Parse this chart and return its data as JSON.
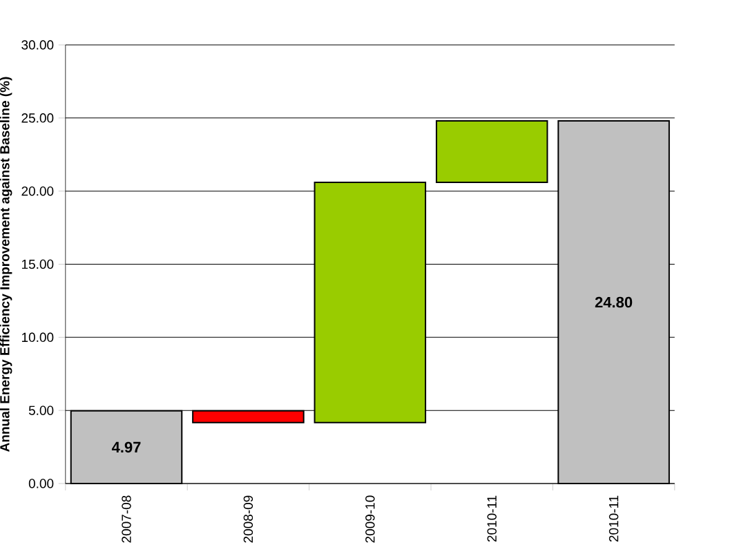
{
  "chart_data": {
    "type": "bar",
    "ylabel": "Annual Energy Efficiency Improvement against Baseline (%)",
    "categories": [
      "2007-08",
      "2008-09",
      "2009-10",
      "2010-11",
      "2010-11"
    ],
    "values": [
      4.97,
      -0.8,
      16.43,
      4.2,
      24.8
    ],
    "base": [
      0,
      4.97,
      4.17,
      20.6,
      0
    ],
    "colors": [
      "#c0c0c0",
      "#ff0000",
      "#99cc00",
      "#99cc00",
      "#c0c0c0"
    ],
    "value_labels": [
      "4.97",
      null,
      null,
      null,
      "24.80"
    ],
    "ylim": [
      0,
      30
    ],
    "yticks": [
      {
        "value": 0,
        "label": "0.00"
      },
      {
        "value": 5,
        "label": "5.00"
      },
      {
        "value": 10,
        "label": "10.00"
      },
      {
        "value": 15,
        "label": "15.00"
      },
      {
        "value": 20,
        "label": "20.00"
      },
      {
        "value": 25,
        "label": "25.00"
      },
      {
        "value": 30,
        "label": "30.00"
      }
    ],
    "grid": "y"
  }
}
